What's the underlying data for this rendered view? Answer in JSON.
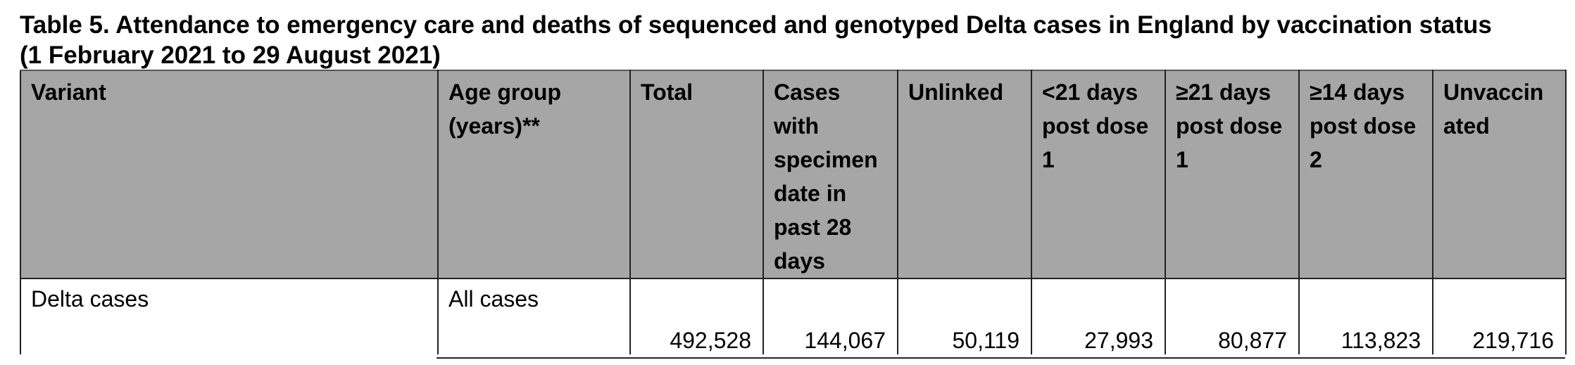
{
  "title": {
    "line1": "Table 5. Attendance to emergency care and deaths of sequenced and genotyped Delta cases in England by vaccination status",
    "line2": "(1 February 2021 to 29 August 2021)"
  },
  "table": {
    "headers": [
      "Variant",
      "Age group (years)**",
      "Total",
      "Cases with specimen date in past 28 days",
      "Unlinked",
      "<21 days post dose 1",
      "≥21 days post dose 1",
      "≥14 days post dose 2",
      "Unvaccinated"
    ],
    "header_display": [
      [
        "Variant"
      ],
      [
        "Age group",
        "(years)**"
      ],
      [
        "Total"
      ],
      [
        "Cases",
        "with",
        "specimen",
        "date in",
        "past 28",
        "days"
      ],
      [
        "Unlinked"
      ],
      [
        "<21 days",
        "post dose",
        "1"
      ],
      [
        "≥21 days",
        "post dose",
        "1"
      ],
      [
        "≥14 days",
        "post dose",
        "2"
      ],
      [
        "Unvaccin",
        "ated"
      ]
    ],
    "rows": [
      {
        "variant": "Delta cases",
        "age_group": "All cases",
        "total": "492,528",
        "past_28_days": "144,067",
        "unlinked": "50,119",
        "lt21_dose1": "27,993",
        "ge21_dose1": "80,877",
        "ge14_dose2": "113,823",
        "unvaccinated": "219,716"
      }
    ]
  },
  "colors": {
    "header_bg": "#a6a6a6",
    "border": "#222222",
    "text": "#000000"
  }
}
